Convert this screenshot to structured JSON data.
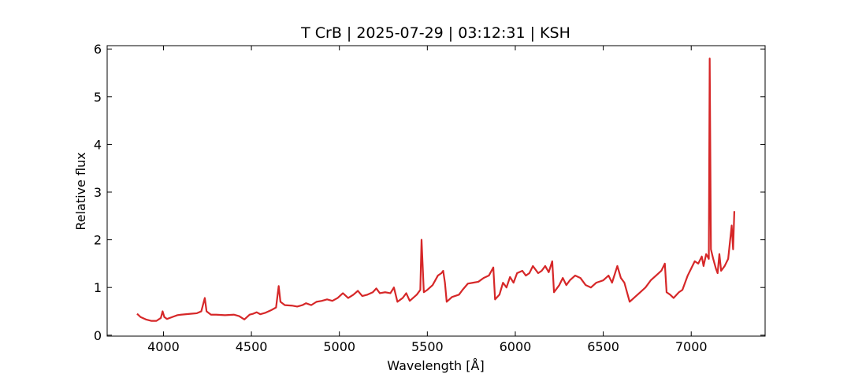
{
  "chart_data": {
    "type": "line",
    "title": "T CrB | 2025-07-29 | 03:12:31 | KSH",
    "xlabel": "Wavelength [Å]",
    "ylabel": "Relative flux",
    "xlim": [
      3680,
      7420
    ],
    "ylim": [
      -0.02,
      6.07
    ],
    "xticks": [
      4000,
      4500,
      5000,
      5500,
      6000,
      6500,
      7000
    ],
    "yticks": [
      0,
      1,
      2,
      3,
      4,
      5,
      6
    ],
    "series": [
      {
        "name": "T CrB",
        "color": "#d62728",
        "x": [
          3850,
          3870,
          3900,
          3930,
          3960,
          3985,
          3995,
          4005,
          4020,
          4050,
          4080,
          4100,
          4130,
          4160,
          4190,
          4215,
          4235,
          4245,
          4270,
          4300,
          4350,
          4400,
          4430,
          4460,
          4490,
          4510,
          4530,
          4550,
          4580,
          4610,
          4640,
          4655,
          4665,
          4690,
          4730,
          4760,
          4790,
          4810,
          4840,
          4870,
          4900,
          4930,
          4960,
          4990,
          5020,
          5050,
          5080,
          5105,
          5130,
          5160,
          5190,
          5210,
          5230,
          5260,
          5290,
          5310,
          5330,
          5360,
          5380,
          5400,
          5440,
          5460,
          5467,
          5480,
          5500,
          5530,
          5560,
          5580,
          5590,
          5600,
          5610,
          5640,
          5680,
          5700,
          5730,
          5760,
          5790,
          5820,
          5850,
          5875,
          5885,
          5910,
          5930,
          5950,
          5970,
          5990,
          6010,
          6040,
          6060,
          6080,
          6100,
          6130,
          6150,
          6170,
          6190,
          6210,
          6220,
          6250,
          6270,
          6290,
          6310,
          6340,
          6370,
          6400,
          6430,
          6460,
          6500,
          6530,
          6550,
          6580,
          6600,
          6620,
          6650,
          6680,
          6710,
          6740,
          6770,
          6800,
          6830,
          6850,
          6860,
          6880,
          6900,
          6930,
          6950,
          6980,
          7000,
          7020,
          7040,
          7060,
          7070,
          7085,
          7100,
          7105,
          7112,
          7125,
          7140,
          7150,
          7160,
          7170,
          7190,
          7210,
          7230,
          7238,
          7245
        ],
        "values": [
          0.45,
          0.38,
          0.33,
          0.3,
          0.3,
          0.36,
          0.5,
          0.38,
          0.34,
          0.38,
          0.42,
          0.43,
          0.44,
          0.45,
          0.46,
          0.5,
          0.78,
          0.5,
          0.43,
          0.43,
          0.42,
          0.43,
          0.4,
          0.33,
          0.43,
          0.45,
          0.48,
          0.44,
          0.47,
          0.52,
          0.58,
          1.03,
          0.7,
          0.63,
          0.62,
          0.6,
          0.63,
          0.67,
          0.63,
          0.7,
          0.72,
          0.75,
          0.72,
          0.78,
          0.88,
          0.78,
          0.85,
          0.93,
          0.82,
          0.85,
          0.9,
          0.98,
          0.88,
          0.9,
          0.88,
          1.0,
          0.7,
          0.78,
          0.88,
          0.72,
          0.85,
          0.95,
          2.0,
          0.9,
          0.95,
          1.05,
          1.25,
          1.3,
          1.35,
          1.1,
          0.7,
          0.8,
          0.85,
          0.95,
          1.08,
          1.1,
          1.12,
          1.2,
          1.25,
          1.42,
          0.75,
          0.85,
          1.1,
          1.0,
          1.22,
          1.1,
          1.3,
          1.35,
          1.25,
          1.3,
          1.45,
          1.3,
          1.35,
          1.45,
          1.32,
          1.55,
          0.9,
          1.05,
          1.2,
          1.05,
          1.15,
          1.25,
          1.2,
          1.05,
          1.0,
          1.1,
          1.15,
          1.25,
          1.1,
          1.45,
          1.2,
          1.1,
          0.7,
          0.8,
          0.9,
          1.0,
          1.15,
          1.25,
          1.35,
          1.5,
          0.9,
          0.85,
          0.78,
          0.9,
          0.95,
          1.25,
          1.4,
          1.55,
          1.5,
          1.65,
          1.45,
          1.7,
          1.6,
          5.8,
          1.8,
          1.6,
          1.4,
          1.3,
          1.7,
          1.35,
          1.45,
          1.6,
          2.3,
          1.8,
          2.6
        ]
      }
    ]
  }
}
